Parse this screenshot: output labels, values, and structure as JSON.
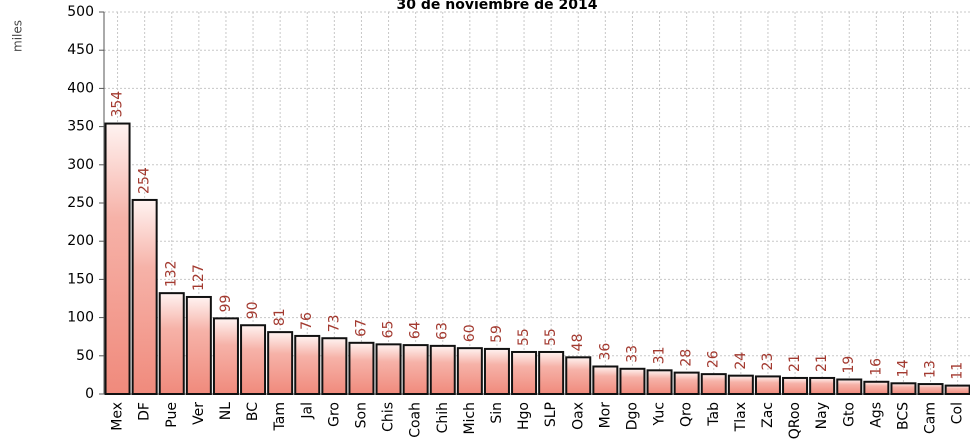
{
  "chart_data": {
    "type": "bar",
    "title": "30 de noviembre de 2014",
    "y_label": "miles",
    "categories": [
      "Mex",
      "DF",
      "Pue",
      "Ver",
      "NL",
      "BC",
      "Tam",
      "Jal",
      "Gro",
      "Son",
      "Chis",
      "Coah",
      "Chih",
      "Mich",
      "Sin",
      "Hgo",
      "SLP",
      "Oax",
      "Mor",
      "Dgo",
      "Yuc",
      "Qro",
      "Tab",
      "Tlax",
      "Zac",
      "QRoo",
      "Nay",
      "Gto",
      "Ags",
      "BCS",
      "Cam",
      "Col"
    ],
    "values": [
      354,
      254,
      132,
      127,
      99,
      90,
      81,
      76,
      73,
      67,
      65,
      64,
      63,
      60,
      59,
      55,
      55,
      48,
      36,
      33,
      31,
      28,
      26,
      24,
      23,
      21,
      21,
      19,
      16,
      14,
      13,
      11
    ],
    "color": "#f08a7c",
    "label_color": "#a33a30",
    "ylim": [
      0,
      500
    ],
    "yticks": [
      0,
      50,
      100,
      150,
      200,
      250,
      300,
      350,
      400,
      450,
      500
    ],
    "grid": true
  }
}
